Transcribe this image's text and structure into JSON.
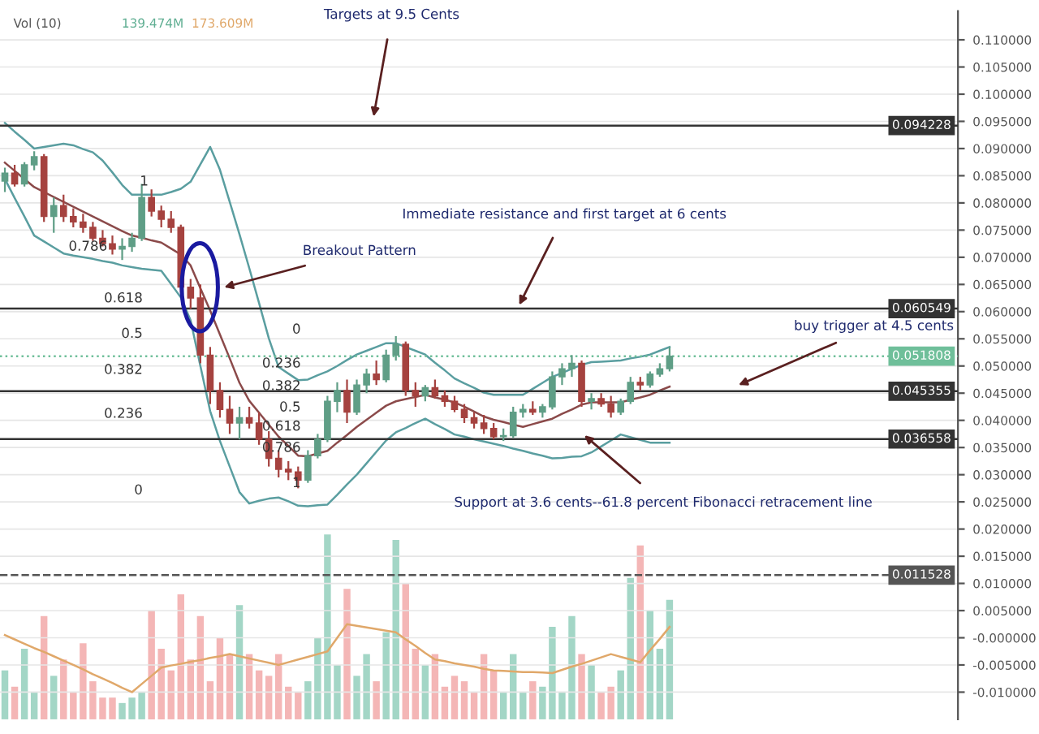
{
  "chart_data": {
    "type": "candlestick",
    "categories": [
      null,
      null,
      null,
      null,
      null,
      null,
      null,
      null,
      null,
      null,
      null,
      null,
      null,
      null,
      null,
      null,
      null,
      null,
      null,
      null,
      null,
      null,
      null,
      null,
      null,
      null,
      null,
      null,
      null,
      null,
      null,
      null,
      null,
      null,
      null,
      null,
      null,
      null,
      null,
      null,
      null,
      null,
      null,
      null,
      null,
      null,
      null,
      null,
      null,
      null,
      null,
      null,
      null,
      null,
      null,
      null,
      null,
      null,
      null,
      null,
      null,
      null,
      null,
      null,
      null,
      null,
      null,
      null,
      null,
      null,
      null,
      null,
      null,
      null,
      null,
      null,
      null,
      null,
      null,
      null,
      null,
      null,
      null,
      null,
      null,
      null,
      null,
      null,
      null,
      null,
      null,
      null,
      null,
      null,
      null,
      null,
      null,
      null
    ],
    "ohlc": [
      [
        0.084,
        0.0865,
        0.082,
        0.0855
      ],
      [
        0.0855,
        0.087,
        0.083,
        0.0835
      ],
      [
        0.0835,
        0.0875,
        0.083,
        0.087
      ],
      [
        0.087,
        0.0895,
        0.086,
        0.0885
      ],
      [
        0.0885,
        0.089,
        0.0765,
        0.0775
      ],
      [
        0.0775,
        0.081,
        0.0745,
        0.0795
      ],
      [
        0.0795,
        0.0815,
        0.0765,
        0.0775
      ],
      [
        0.0775,
        0.079,
        0.0755,
        0.0765
      ],
      [
        0.0765,
        0.078,
        0.0745,
        0.0755
      ],
      [
        0.0755,
        0.0765,
        0.073,
        0.0735
      ],
      [
        0.0735,
        0.075,
        0.072,
        0.0725
      ],
      [
        0.0725,
        0.074,
        0.0705,
        0.0715
      ],
      [
        0.0715,
        0.0735,
        0.0695,
        0.072
      ],
      [
        0.072,
        0.0745,
        0.071,
        0.0735
      ],
      [
        0.0735,
        0.0835,
        0.073,
        0.081
      ],
      [
        0.081,
        0.0825,
        0.0775,
        0.0785
      ],
      [
        0.0785,
        0.0795,
        0.0755,
        0.077
      ],
      [
        0.077,
        0.0785,
        0.0745,
        0.0755
      ],
      [
        0.0755,
        0.076,
        0.0635,
        0.0645
      ],
      [
        0.0645,
        0.066,
        0.0605,
        0.0625
      ],
      [
        0.0625,
        0.065,
        0.0505,
        0.052
      ],
      [
        0.052,
        0.0535,
        0.043,
        0.0455
      ],
      [
        0.0455,
        0.047,
        0.0405,
        0.042
      ],
      [
        0.042,
        0.0445,
        0.0375,
        0.0395
      ],
      [
        0.0395,
        0.0425,
        0.0365,
        0.0405
      ],
      [
        0.0405,
        0.0425,
        0.0385,
        0.0395
      ],
      [
        0.0395,
        0.0415,
        0.0355,
        0.0365
      ],
      [
        0.0365,
        0.038,
        0.0315,
        0.033
      ],
      [
        0.033,
        0.0345,
        0.0295,
        0.031
      ],
      [
        0.031,
        0.0325,
        0.029,
        0.0305
      ],
      [
        0.0305,
        0.0315,
        0.0275,
        0.029
      ],
      [
        0.029,
        0.0345,
        0.0285,
        0.0335
      ],
      [
        0.0335,
        0.0375,
        0.033,
        0.0365
      ],
      [
        0.0365,
        0.0445,
        0.036,
        0.0435
      ],
      [
        0.0435,
        0.047,
        0.0415,
        0.0455
      ],
      [
        0.0455,
        0.0475,
        0.0395,
        0.0415
      ],
      [
        0.0415,
        0.0475,
        0.041,
        0.0465
      ],
      [
        0.0465,
        0.0495,
        0.045,
        0.0485
      ],
      [
        0.0485,
        0.051,
        0.0465,
        0.0475
      ],
      [
        0.0475,
        0.053,
        0.047,
        0.052
      ],
      [
        0.052,
        0.0555,
        0.051,
        0.054
      ],
      [
        0.054,
        0.0545,
        0.0445,
        0.0455
      ],
      [
        0.0455,
        0.047,
        0.0425,
        0.0445
      ],
      [
        0.0445,
        0.0465,
        0.0435,
        0.046
      ],
      [
        0.046,
        0.0475,
        0.044,
        0.0445
      ],
      [
        0.0445,
        0.0455,
        0.0425,
        0.0435
      ],
      [
        0.0435,
        0.0445,
        0.0415,
        0.042
      ],
      [
        0.042,
        0.043,
        0.0395,
        0.0405
      ],
      [
        0.0405,
        0.0415,
        0.0385,
        0.0395
      ],
      [
        0.0395,
        0.041,
        0.0375,
        0.0385
      ],
      [
        0.0385,
        0.0395,
        0.0365,
        0.037
      ],
      [
        0.037,
        0.0385,
        0.0362,
        0.0372
      ],
      [
        0.0372,
        0.0425,
        0.0368,
        0.0415
      ],
      [
        0.0415,
        0.043,
        0.0405,
        0.042
      ],
      [
        0.042,
        0.0435,
        0.041,
        0.0415
      ],
      [
        0.0415,
        0.043,
        0.0405,
        0.0425
      ],
      [
        0.0425,
        0.049,
        0.042,
        0.048
      ],
      [
        0.048,
        0.0505,
        0.0465,
        0.0495
      ],
      [
        0.0495,
        0.052,
        0.048,
        0.0505
      ],
      [
        0.0505,
        0.051,
        0.0425,
        0.0435
      ],
      [
        0.0435,
        0.045,
        0.042,
        0.044
      ],
      [
        0.044,
        0.045,
        0.0425,
        0.043
      ],
      [
        0.043,
        0.0445,
        0.0405,
        0.0415
      ],
      [
        0.0415,
        0.044,
        0.041,
        0.0435
      ],
      [
        0.0435,
        0.048,
        0.043,
        0.047
      ],
      [
        0.047,
        0.048,
        0.0455,
        0.0465
      ],
      [
        0.0465,
        0.049,
        0.046,
        0.0485
      ],
      [
        0.0485,
        0.0505,
        0.048,
        0.0495
      ],
      [
        0.0495,
        0.0535,
        0.049,
        0.0518
      ],
      null,
      null,
      null,
      null,
      null,
      null,
      null,
      null,
      null,
      null,
      null,
      null,
      null,
      null,
      null,
      null,
      null,
      null,
      null,
      null,
      null,
      null,
      null,
      null,
      null,
      null,
      null,
      null,
      null
    ],
    "colors": [
      "#5f9e86",
      "#a5423f",
      "#5f9e86",
      "#5f9e86",
      "#a5423f",
      "#5f9e86",
      "#a5423f",
      "#a5423f",
      "#a5423f",
      "#a5423f",
      "#a5423f",
      "#a5423f",
      "#5f9e86",
      "#5f9e86",
      "#5f9e86",
      "#a5423f",
      "#a5423f",
      "#a5423f",
      "#a5423f",
      "#a5423f",
      "#a5423f",
      "#a5423f",
      "#a5423f",
      "#a5423f",
      "#5f9e86",
      "#a5423f",
      "#a5423f",
      "#a5423f",
      "#a5423f",
      "#a5423f",
      "#a5423f",
      "#5f9e86",
      "#5f9e86",
      "#5f9e86",
      "#5f9e86",
      "#a5423f",
      "#5f9e86",
      "#5f9e86",
      "#a5423f",
      "#5f9e86",
      "#5f9e86",
      "#a5423f",
      "#a5423f",
      "#5f9e86",
      "#a5423f",
      "#a5423f",
      "#a5423f",
      "#a5423f",
      "#a5423f",
      "#a5423f",
      "#a5423f",
      "#5f9e86",
      "#5f9e86",
      "#5f9e86",
      "#a5423f",
      "#5f9e86",
      "#5f9e86",
      "#5f9e86",
      "#5f9e86",
      "#a5423f",
      "#5f9e86",
      "#a5423f",
      "#a5423f",
      "#5f9e86",
      "#5f9e86",
      "#a5423f",
      "#5f9e86",
      "#5f9e86",
      "#5f9e86",
      null,
      null,
      null,
      null,
      null,
      null,
      null,
      null,
      null,
      null,
      null,
      null,
      null,
      null,
      null,
      null,
      null,
      null,
      null,
      null,
      null,
      null,
      null,
      null,
      null,
      null,
      null,
      null,
      null
    ],
    "series": [
      {
        "type": "bar",
        "color": "#a3d6c6",
        "base": [
          -0.015,
          -0.015,
          -0.015,
          -0.015,
          -0.015,
          -0.015,
          -0.015,
          -0.015,
          -0.015,
          -0.015,
          -0.015,
          -0.015,
          -0.015,
          -0.015,
          -0.015,
          -0.015,
          -0.015,
          -0.015,
          -0.015,
          -0.015,
          -0.015,
          -0.015,
          -0.015,
          -0.015,
          -0.015,
          -0.015,
          -0.015,
          -0.015,
          -0.015,
          -0.015,
          -0.015,
          -0.015,
          -0.015,
          -0.015,
          -0.015,
          -0.015,
          -0.015,
          -0.015,
          -0.015,
          -0.015,
          -0.015,
          -0.015,
          -0.015,
          -0.015,
          -0.015,
          -0.015,
          -0.015,
          -0.015,
          -0.015,
          -0.015,
          -0.015,
          -0.015,
          -0.015,
          -0.015,
          -0.015,
          -0.015,
          -0.015,
          -0.015,
          -0.015,
          -0.015,
          -0.015,
          -0.015,
          -0.015,
          -0.015,
          -0.015,
          -0.015,
          -0.015,
          -0.015,
          -0.015,
          null,
          null,
          null,
          null,
          null,
          null,
          null,
          null,
          null,
          null,
          null,
          null,
          null,
          null,
          null,
          null,
          null,
          null,
          null,
          null,
          null,
          null,
          null,
          null,
          null,
          null,
          null,
          null,
          null
        ],
        "values": [
          0.009,
          0.006,
          0.013,
          0.005,
          0.019,
          0.008,
          0.011,
          0.005,
          0.014,
          0.007,
          0.004,
          0.004,
          0.003,
          0.004,
          0.005,
          0.02,
          0.013,
          0.009,
          0.023,
          0.011,
          0.019,
          0.007,
          0.015,
          0.012,
          0.021,
          0.012,
          0.009,
          0.008,
          0.012,
          0.006,
          0.005,
          0.007,
          0.015,
          0.034,
          0.01,
          0.024,
          0.008,
          0.012,
          0.007,
          0.016,
          0.033,
          0.025,
          0.013,
          0.01,
          0.012,
          0.006,
          0.008,
          0.007,
          0.005,
          0.012,
          0.009,
          0.005,
          0.012,
          0.005,
          0.007,
          0.006,
          0.017,
          0.005,
          0.019,
          0.012,
          0.01,
          0.005,
          0.006,
          0.009,
          0.026,
          0.032,
          0.02,
          0.013,
          0.022,
          null,
          null,
          null,
          null,
          null,
          null,
          null,
          null,
          null,
          null,
          null,
          null,
          null,
          null,
          null,
          null,
          null,
          null,
          null,
          null,
          null,
          null,
          null,
          null,
          null,
          null,
          null,
          null,
          null
        ],
        "colors": [
          "#a3d6c6",
          "#f4b6b6",
          "#a3d6c6",
          "#a3d6c6",
          "#f4b6b6",
          "#a3d6c6",
          "#f4b6b6",
          "#f4b6b6",
          "#f4b6b6",
          "#f4b6b6",
          "#f4b6b6",
          "#f4b6b6",
          "#a3d6c6",
          "#a3d6c6",
          "#a3d6c6",
          "#f4b6b6",
          "#f4b6b6",
          "#f4b6b6",
          "#f4b6b6",
          "#f4b6b6",
          "#f4b6b6",
          "#f4b6b6",
          "#f4b6b6",
          "#f4b6b6",
          "#a3d6c6",
          "#f4b6b6",
          "#f4b6b6",
          "#f4b6b6",
          "#f4b6b6",
          "#f4b6b6",
          "#f4b6b6",
          "#a3d6c6",
          "#a3d6c6",
          "#a3d6c6",
          "#a3d6c6",
          "#f4b6b6",
          "#a3d6c6",
          "#a3d6c6",
          "#f4b6b6",
          "#a3d6c6",
          "#a3d6c6",
          "#f4b6b6",
          "#f4b6b6",
          "#a3d6c6",
          "#f4b6b6",
          "#f4b6b6",
          "#f4b6b6",
          "#f4b6b6",
          "#f4b6b6",
          "#f4b6b6",
          "#f4b6b6",
          "#a3d6c6",
          "#a3d6c6",
          "#a3d6c6",
          "#f4b6b6",
          "#a3d6c6",
          "#a3d6c6",
          "#a3d6c6",
          "#a3d6c6",
          "#f4b6b6",
          "#a3d6c6",
          "#f4b6b6",
          "#f4b6b6",
          "#a3d6c6",
          "#a3d6c6",
          "#f4b6b6",
          "#a3d6c6",
          "#a3d6c6",
          "#a3d6c6",
          null,
          null,
          null,
          null,
          null,
          null,
          null,
          null,
          null,
          null,
          null,
          null,
          null,
          null,
          null,
          null,
          null,
          null,
          null,
          null,
          null,
          null,
          null,
          null,
          null,
          null,
          null,
          null,
          null
        ]
      },
      {
        "type": "line",
        "color": "#e0a86a",
        "values": [
          0.0005,
          -0.0003,
          -0.0011,
          -0.0019,
          -0.0026,
          -0.0034,
          -0.0042,
          -0.005,
          -0.0058,
          -0.0067,
          -0.0075,
          -0.0083,
          -0.0092,
          -0.01,
          -0.0085,
          -0.007,
          -0.0055,
          -0.0051,
          -0.0048,
          -0.0044,
          -0.0041,
          -0.0037,
          -0.0034,
          -0.003,
          -0.0034,
          -0.0038,
          -0.0042,
          -0.0046,
          -0.005,
          -0.0045,
          -0.004,
          -0.0035,
          -0.003,
          -0.0025,
          0.0,
          0.0025,
          0.0022,
          0.0019,
          0.0016,
          0.0013,
          0.001,
          -0.0003,
          -0.0015,
          -0.0028,
          -0.004,
          -0.0043,
          -0.0047,
          -0.005,
          -0.0053,
          -0.0057,
          -0.006,
          -0.0061,
          -0.0062,
          -0.0063,
          -0.0063,
          -0.0064,
          -0.0065,
          -0.0059,
          -0.0053,
          -0.0048,
          -0.0042,
          -0.0036,
          -0.003,
          -0.0035,
          -0.004,
          -0.0045,
          -0.0023,
          -0.0002,
          0.002,
          null,
          null,
          null,
          null,
          null,
          null,
          null,
          null,
          null,
          null,
          null,
          null,
          null,
          null,
          null,
          null,
          null,
          null,
          null,
          null,
          null,
          null,
          null,
          null,
          null,
          null,
          null,
          null,
          null
        ]
      },
      {
        "type": "line",
        "color": "#5a9ea0",
        "values": [
          0.0947,
          0.0931,
          0.0916,
          0.09,
          0.0903,
          0.0906,
          0.0909,
          0.0906,
          0.0899,
          0.0893,
          0.0878,
          0.0856,
          0.0833,
          0.0815,
          0.0815,
          0.0815,
          0.0815,
          0.082,
          0.0826,
          0.0839,
          0.0871,
          0.0903,
          0.0861,
          0.0802,
          0.0742,
          0.068,
          0.0616,
          0.0551,
          0.0498,
          0.0486,
          0.0474,
          0.0475,
          0.0483,
          0.049,
          0.05,
          0.0511,
          0.0521,
          0.0528,
          0.0535,
          0.0542,
          0.0542,
          0.0535,
          0.0528,
          0.0521,
          0.0506,
          0.0492,
          0.0477,
          0.0468,
          0.046,
          0.0451,
          0.0447,
          0.0447,
          0.0447,
          0.0447,
          0.0458,
          0.0469,
          0.048,
          0.0487,
          0.0495,
          0.0502,
          0.0507,
          0.0508,
          0.0509,
          0.051,
          0.0514,
          0.0517,
          0.0521,
          0.0528,
          0.0535,
          null,
          null,
          null,
          null,
          null,
          null,
          null,
          null,
          null,
          null,
          null,
          null,
          null,
          null,
          null,
          null,
          null,
          null,
          null,
          null,
          null,
          null,
          null,
          null,
          null,
          null,
          null,
          null,
          null
        ]
      },
      {
        "type": "line",
        "color": "#8b4a4a",
        "values": [
          0.0874,
          0.0859,
          0.0844,
          0.0829,
          0.082,
          0.0811,
          0.0802,
          0.0793,
          0.0784,
          0.0775,
          0.0766,
          0.0757,
          0.0748,
          0.074,
          0.0736,
          0.0731,
          0.0727,
          0.0716,
          0.0705,
          0.0685,
          0.0643,
          0.0602,
          0.0558,
          0.0514,
          0.0469,
          0.0436,
          0.0414,
          0.0392,
          0.037,
          0.0353,
          0.0335,
          0.0334,
          0.0339,
          0.0344,
          0.0359,
          0.0373,
          0.0388,
          0.0401,
          0.0414,
          0.0427,
          0.0435,
          0.0439,
          0.0443,
          0.0447,
          0.0442,
          0.0438,
          0.0433,
          0.0425,
          0.0416,
          0.0407,
          0.0401,
          0.0397,
          0.0392,
          0.0388,
          0.0393,
          0.0398,
          0.0403,
          0.0412,
          0.042,
          0.0429,
          0.0433,
          0.0433,
          0.0433,
          0.0433,
          0.0438,
          0.0442,
          0.0447,
          0.0455,
          0.0462,
          null,
          null,
          null,
          null,
          null,
          null,
          null,
          null,
          null,
          null,
          null,
          null,
          null,
          null,
          null,
          null,
          null,
          null,
          null,
          null,
          null,
          null,
          null,
          null,
          null,
          null,
          null,
          null,
          null
        ]
      },
      {
        "type": "line",
        "color": "#5a9ea0",
        "values": [
          0.0844,
          0.0809,
          0.0775,
          0.074,
          0.0729,
          0.0718,
          0.0707,
          0.0703,
          0.07,
          0.0697,
          0.0693,
          0.069,
          0.0685,
          0.0682,
          0.0679,
          0.0677,
          0.0675,
          0.0651,
          0.0626,
          0.0584,
          0.05,
          0.0417,
          0.0362,
          0.0315,
          0.0268,
          0.0247,
          0.0252,
          0.0256,
          0.0258,
          0.0251,
          0.0243,
          0.0242,
          0.0244,
          0.0245,
          0.0263,
          0.0282,
          0.03,
          0.0321,
          0.0342,
          0.0363,
          0.0378,
          0.0386,
          0.0395,
          0.0403,
          0.0393,
          0.0384,
          0.0374,
          0.037,
          0.0365,
          0.0361,
          0.0357,
          0.0353,
          0.0348,
          0.0344,
          0.0339,
          0.0335,
          0.033,
          0.0331,
          0.0333,
          0.0334,
          0.0341,
          0.0352,
          0.0363,
          0.0374,
          0.0369,
          0.0364,
          0.0359,
          0.0359,
          0.0359,
          null,
          null,
          null,
          null,
          null,
          null,
          null,
          null,
          null,
          null,
          null,
          null,
          null,
          null,
          null,
          null,
          null,
          null,
          null,
          null,
          null,
          null,
          null,
          null,
          null,
          null,
          null,
          null,
          null
        ]
      }
    ],
    "ylim": [
      -0.015,
      0.1153
    ],
    "yticks": [
      {
        "value": -0.01,
        "label": "-0.010000"
      },
      {
        "value": -0.005,
        "label": "-0.005000"
      },
      {
        "value": 0,
        "label": "-0.000000"
      },
      {
        "value": 0.005,
        "label": "0.005000"
      },
      {
        "value": 0.01,
        "label": "0.010000"
      },
      {
        "value": 0.015,
        "label": "0.015000"
      },
      {
        "value": 0.02,
        "label": "0.020000"
      },
      {
        "value": 0.025,
        "label": "0.025000"
      },
      {
        "value": 0.03,
        "label": "0.030000"
      },
      {
        "value": 0.035,
        "label": "0.035000"
      },
      {
        "value": 0.04,
        "label": "0.040000"
      },
      {
        "value": 0.045,
        "label": "0.045000"
      },
      {
        "value": 0.05,
        "label": "0.050000"
      },
      {
        "value": 0.055,
        "label": "0.055000"
      },
      {
        "value": 0.06,
        "label": "0.060000"
      },
      {
        "value": 0.065,
        "label": "0.065000"
      },
      {
        "value": 0.07,
        "label": "0.070000"
      },
      {
        "value": 0.075,
        "label": "0.075000"
      },
      {
        "value": 0.08,
        "label": "0.080000"
      },
      {
        "value": 0.085,
        "label": "0.085000"
      },
      {
        "value": 0.09,
        "label": "0.090000"
      },
      {
        "value": 0.095,
        "label": "0.095000"
      },
      {
        "value": 0.1,
        "label": "0.100000"
      },
      {
        "value": 0.105,
        "label": "0.105000"
      },
      {
        "value": 0.11,
        "label": "0.110000"
      }
    ],
    "tick_labels": "y",
    "grid": "y",
    "ref_lines": [
      {
        "axis": "y",
        "value": 0.094228,
        "label": "0.094228",
        "color": "#333333",
        "line_style": "solid"
      },
      {
        "axis": "y",
        "value": 0.060549,
        "label": "0.060549",
        "color": "#333333",
        "line_style": "solid"
      },
      {
        "axis": "y",
        "value": 0.051808,
        "label": "0.051808",
        "color": "#6fbf9a",
        "line_style": "dotted"
      },
      {
        "axis": "y",
        "value": 0.045355,
        "label": "0.045355",
        "color": "#333333",
        "line_style": "solid"
      },
      {
        "axis": "y",
        "value": 0.036558,
        "label": "0.036558",
        "color": "#333333",
        "line_style": "solid"
      },
      {
        "axis": "y",
        "value": 0.011528,
        "label": "0.011528",
        "color": "#555555",
        "line_style": "dashed"
      }
    ],
    "annotations": [
      "Targets at 9.5 Cents",
      "Immediate resistance and first target at 6 cents",
      "Breakout Pattern",
      "buy trigger at 4.5 cents",
      "Support at 3.6 cents--61.8 percent Fibonacci retracement line",
      "1",
      "0.786",
      "0.618",
      "0.5",
      "0.382",
      "0.236",
      "0",
      "0",
      "0.236",
      "0.382",
      "0.5",
      "0.618",
      "0.786",
      "1",
      "Vol (10)",
      "139.474M",
      "173.609M"
    ]
  }
}
